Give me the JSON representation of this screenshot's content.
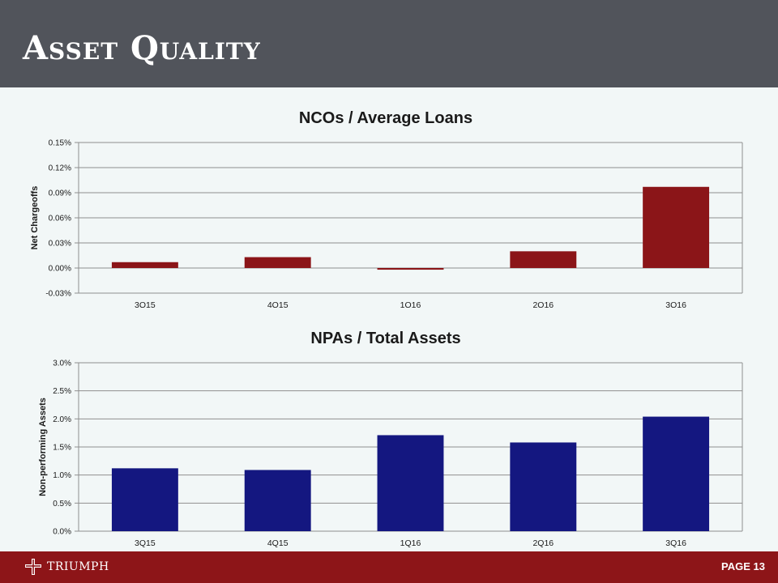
{
  "header": {
    "title": "Asset Quality"
  },
  "footer": {
    "logo_text": "TRIUMPH",
    "page_label": "PAGE 13"
  },
  "chart_data": [
    {
      "type": "bar",
      "title": "NCOs / Average Loans",
      "xlabel": "",
      "ylabel": "Net Chargeoffs",
      "categories": [
        "3Q15",
        "4Q15",
        "1Q16",
        "2Q16",
        "3Q16"
      ],
      "values": [
        0.007,
        0.013,
        -0.002,
        0.02,
        0.097
      ],
      "ylim": [
        -0.03,
        0.15
      ],
      "yticks": [
        -0.03,
        0.0,
        0.03,
        0.06,
        0.09,
        0.12,
        0.15
      ],
      "ytick_labels": [
        "-0.03%",
        "0.00%",
        "0.03%",
        "0.06%",
        "0.09%",
        "0.12%",
        "0.15%"
      ],
      "color": "#8b1518",
      "grid": true,
      "legend": "none"
    },
    {
      "type": "bar",
      "title": "NPAs / Total Assets",
      "xlabel": "",
      "ylabel": "Non-performing Assets",
      "categories": [
        "3Q15",
        "4Q15",
        "1Q16",
        "2Q16",
        "3Q16"
      ],
      "values": [
        1.12,
        1.09,
        1.71,
        1.58,
        2.04
      ],
      "ylim": [
        0,
        3.0
      ],
      "yticks": [
        0,
        0.5,
        1.0,
        1.5,
        2.0,
        2.5,
        3.0
      ],
      "ytick_labels": [
        "0.0%",
        "0.5%",
        "1.0%",
        "1.5%",
        "2.0%",
        "2.5%",
        "3.0%"
      ],
      "color": "#141780",
      "grid": true,
      "legend": "none"
    }
  ]
}
